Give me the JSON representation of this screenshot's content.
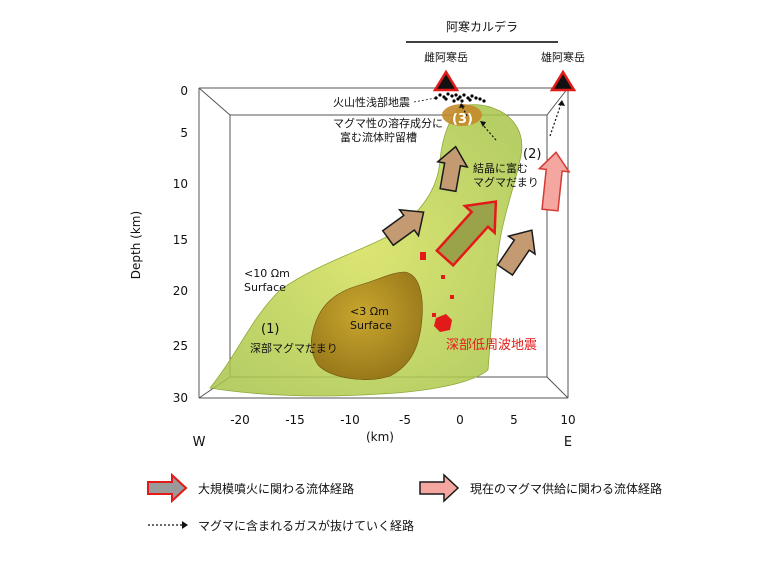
{
  "caldera": {
    "label": "阿寒カルデラ"
  },
  "volcanoes": {
    "left": "雌阿寒岳",
    "right": "雄阿寒岳"
  },
  "annotations": {
    "shallow_quakes": "火山性浅部地震",
    "reservoir_line1": "マグマ性の溶存成分に",
    "reservoir_line2": "富む流体貯留槽",
    "crystal_line1": "結晶に富む",
    "crystal_line2": "マグマだまり",
    "deep_magma": "深部マグマだまり",
    "deep_lf": "深部低周波地震",
    "num1": "(1)",
    "num2": "(2)",
    "num3": "(3)",
    "surf10_line1": "<10 Ωm",
    "surf10_line2": "Surface",
    "surf3_line1": "<3 Ωm",
    "surf3_line2": "Surface"
  },
  "axes": {
    "ylabel": "Depth (km)",
    "xlabel": "(km)",
    "west": "W",
    "east": "E",
    "yticks": [
      "0",
      "5",
      "10",
      "15",
      "20",
      "25",
      "30"
    ],
    "xticks": [
      "-20",
      "-15",
      "-10",
      "-5",
      "0",
      "5",
      "10"
    ]
  },
  "legend": {
    "large_eruption": "大規模噴火に関わる流体経路",
    "current_supply": "現在のマグマ供給に関わる流体経路",
    "gas_path": "マグマに含まれるガスが抜けていく経路"
  },
  "colors": {
    "outer_body": "#c9d94a",
    "inner_body": "#b08a1a",
    "deep_lf": "#e31a1a",
    "arrow_brown": "#c49a72",
    "arrow_pink": "#f4a6a0",
    "arrow_green": "#9aa24a"
  }
}
